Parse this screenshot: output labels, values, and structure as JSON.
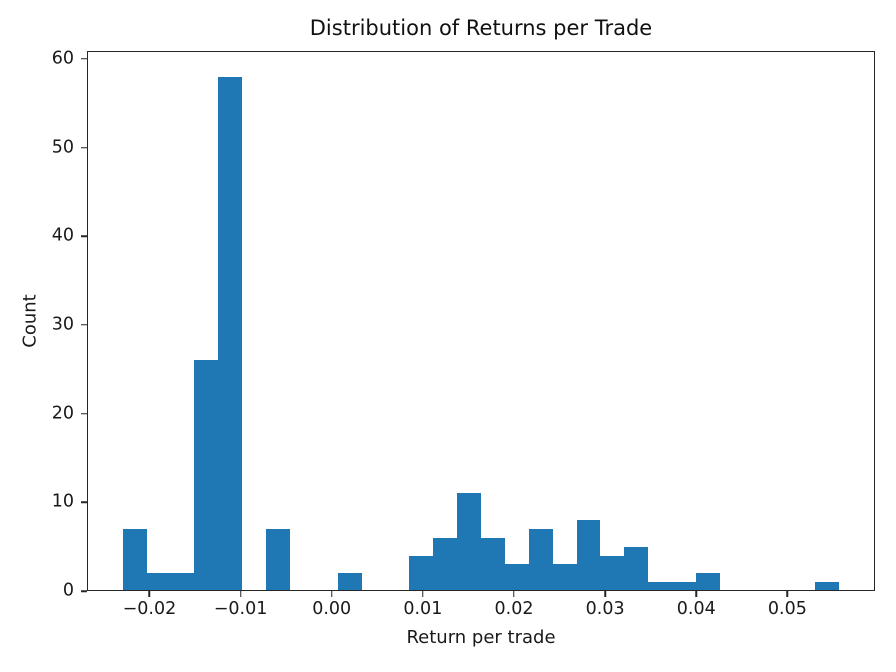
{
  "figure": {
    "background": "#ffffff"
  },
  "chart_data": {
    "type": "bar",
    "subtype": "histogram",
    "title": "Distribution of Returns per Trade",
    "xlabel": "Return per trade",
    "ylabel": "Count",
    "bar_color": "#1f77b4",
    "axis_color": "#262626",
    "grid": false,
    "legend": null,
    "xlim": [
      -0.02685,
      0.05961
    ],
    "ylim": [
      0,
      60.9
    ],
    "xticks": [
      -0.02,
      -0.01,
      0.0,
      0.01,
      0.02,
      0.03,
      0.04,
      0.05
    ],
    "xtick_labels": [
      "−0.02",
      "−0.01",
      "0.00",
      "0.01",
      "0.02",
      "0.03",
      "0.04",
      "0.05"
    ],
    "yticks": [
      0,
      10,
      20,
      30,
      40,
      50,
      60
    ],
    "ytick_labels": [
      "0",
      "10",
      "20",
      "30",
      "40",
      "50",
      "60"
    ],
    "bin_edges": [
      -0.02292,
      -0.0203,
      -0.01768,
      -0.01506,
      -0.01244,
      -0.00982,
      -0.0072,
      -0.00458,
      -0.00196,
      0.00066,
      0.00328,
      0.0059,
      0.00852,
      0.01114,
      0.01376,
      0.01638,
      0.019,
      0.02162,
      0.02424,
      0.02686,
      0.02948,
      0.0321,
      0.03472,
      0.03734,
      0.03996,
      0.04258,
      0.0452,
      0.04782,
      0.05044,
      0.05306,
      0.05568
    ],
    "counts": [
      7,
      2,
      2,
      26,
      58,
      0,
      7,
      0,
      0,
      2,
      0,
      0,
      4,
      6,
      11,
      6,
      3,
      7,
      3,
      8,
      4,
      5,
      1,
      1,
      2,
      0,
      0,
      0,
      0,
      1
    ]
  }
}
